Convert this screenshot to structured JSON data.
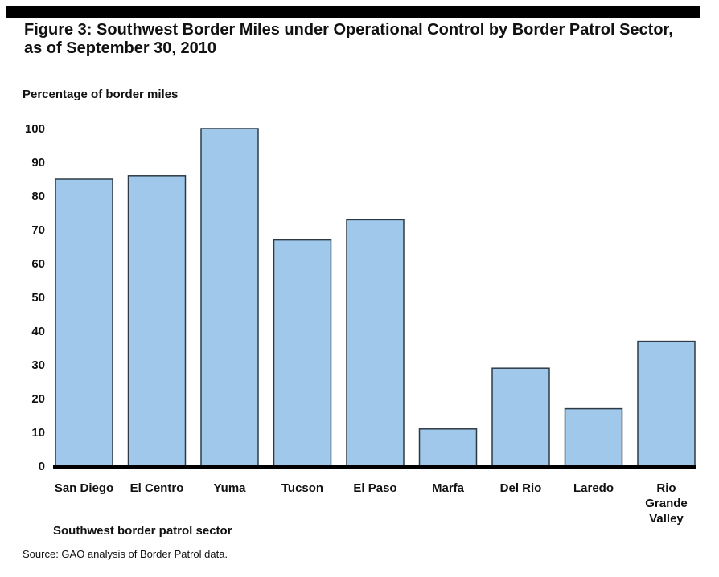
{
  "chart_data": {
    "type": "bar",
    "title": "Figure 3: Southwest Border Miles under Operational Control by Border Patrol Sector, as of September 30, 2010",
    "ylabel": "Percentage of border miles",
    "xlabel": "Southwest border patrol sector",
    "categories": [
      "San Diego",
      "El Centro",
      "Yuma",
      "Tucson",
      "El Paso",
      "Marfa",
      "Del Rio",
      "Laredo",
      "Rio Grande Valley"
    ],
    "category_lines": [
      [
        "San Diego"
      ],
      [
        "El Centro"
      ],
      [
        "Yuma"
      ],
      [
        "Tucson"
      ],
      [
        "El Paso"
      ],
      [
        "Marfa"
      ],
      [
        "Del Rio"
      ],
      [
        "Laredo"
      ],
      [
        "Rio",
        "Grande",
        "Valley"
      ]
    ],
    "values": [
      85,
      86,
      100,
      67,
      73,
      11,
      29,
      17,
      37
    ],
    "ylim": [
      0,
      100
    ],
    "yticks": [
      0,
      10,
      20,
      30,
      40,
      50,
      60,
      70,
      80,
      90,
      100
    ],
    "grid": false,
    "bar_color": "#9fc8ea",
    "bar_edge_color": "#2d3a45",
    "source": "Source: GAO analysis of Border Patrol data."
  }
}
